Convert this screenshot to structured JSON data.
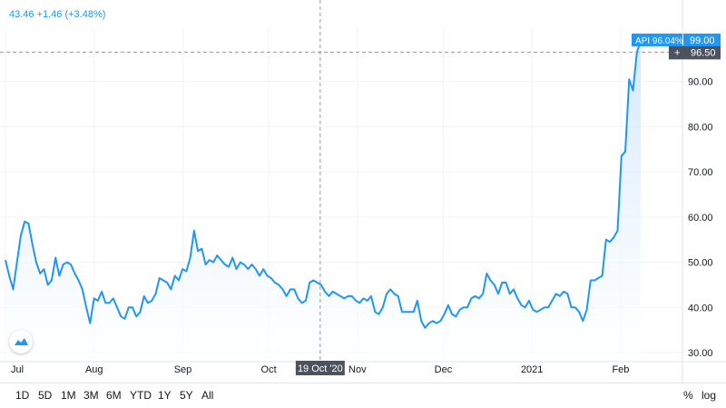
{
  "header": {
    "price_change_text": "43.46 +1.46 (+3.48%)"
  },
  "timeframes": [
    "1D",
    "5D",
    "1M",
    "3M",
    "6M",
    "YTD",
    "1Y",
    "5Y",
    "All"
  ],
  "scale_controls": {
    "percent": "%",
    "log": "log"
  },
  "crosshair": {
    "x_label": "19 Oct '20",
    "y_label": "96.50",
    "plus": "+"
  },
  "last_value_badge": {
    "symbol_label": "API 96.04%",
    "price_label": "99.00"
  },
  "colors": {
    "series": "#2196f3",
    "fill_top": "#cfe6fb",
    "fill_bottom": "#ffffff",
    "crosshair_label_bg": "#4c525e",
    "grid": "#f0f3fa"
  },
  "chart_data": {
    "type": "area",
    "title": "",
    "xlabel": "",
    "ylabel": "",
    "ylim": [
      28,
      102
    ],
    "y_ticks": [
      "30.00",
      "40.00",
      "50.00",
      "60.00",
      "70.00",
      "80.00",
      "90.00"
    ],
    "x_tick_labels": [
      "Jul",
      "Aug",
      "Sep",
      "Oct",
      "Nov",
      "Dec",
      "2021",
      "Feb"
    ],
    "grid": true,
    "series": [
      {
        "values": [
          50.5,
          47,
          44,
          50,
          56,
          59,
          58.5,
          54,
          50,
          47.5,
          48.5,
          45,
          46,
          51,
          47,
          49.5,
          50,
          49.5,
          47.5,
          46,
          44,
          40,
          36.5,
          42,
          41.5,
          43.5,
          41,
          41,
          42,
          40,
          38,
          37.5,
          40,
          40,
          38,
          39,
          42.5,
          41,
          41.5,
          43,
          46.5,
          46,
          45.5,
          44,
          47,
          46,
          48.5,
          48,
          51,
          57,
          52.5,
          53,
          49.5,
          50.5,
          50,
          51.5,
          50.5,
          49.5,
          49,
          51,
          48.5,
          50,
          49.5,
          48.5,
          49.5,
          48.5,
          47,
          48.5,
          47,
          46.5,
          45.5,
          45,
          44,
          42.5,
          44,
          44,
          42,
          41,
          41.5,
          45.5,
          46,
          45.5,
          45,
          43.5,
          42.5,
          43.5,
          43,
          42.5,
          42,
          42.5,
          42.5,
          41.5,
          41,
          42,
          41.5,
          42.5,
          39,
          38.5,
          40,
          43,
          44,
          43,
          42.5,
          39,
          39,
          39,
          39,
          41.5,
          37,
          35.5,
          36.5,
          37,
          36.5,
          37,
          38.5,
          40.5,
          38.5,
          38,
          39.5,
          40,
          40,
          42,
          42.5,
          42,
          43,
          47.5,
          46,
          45,
          43,
          45.5,
          45.5,
          43,
          44,
          42,
          40.5,
          40,
          41.5,
          39.5,
          39,
          39.5,
          40,
          40,
          41.5,
          43,
          42.5,
          43.5,
          43,
          40,
          40,
          39,
          37,
          39.5,
          46,
          46,
          46.5,
          47,
          55,
          54.5,
          55.5,
          57,
          73.5,
          74.5,
          90.5,
          88,
          96.5,
          99
        ]
      }
    ],
    "x_range": [
      "2020-07-01",
      "2021-02-08"
    ],
    "crosshair_date": "2020-10-19",
    "crosshair_price": 96.5
  }
}
